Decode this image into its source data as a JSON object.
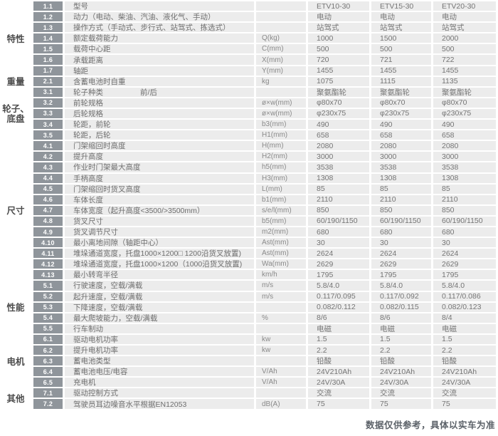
{
  "footnote": "数据仅供参考，具体以实车为准",
  "models": [
    "ETV10-30",
    "ETV15-30",
    "ETV20-30"
  ],
  "colors": {
    "row_band": "#ececec",
    "badge_bg": "#8f959b",
    "badge_text": "#ffffff",
    "category_text": "#4c4c4c",
    "desc_text": "#6e6e6e",
    "unit_text": "#8a8a8a",
    "value_text": "#757575",
    "footnote_text": "#5b6168"
  },
  "sections": [
    {
      "id": "texing",
      "category": [
        "特性"
      ],
      "rows": [
        {
          "no": "1.1",
          "label": "型号",
          "unit": "",
          "values": [
            "ETV10-30",
            "ETV15-30",
            "ETV20-30"
          ]
        },
        {
          "no": "1.2",
          "label": "动力（电动、柴油、汽油、液化气、手动）",
          "unit": "",
          "values": [
            "电动",
            "电动",
            "电动"
          ]
        },
        {
          "no": "1.3",
          "label": "操作方式（手动式、步行式、站驾式、拣选式）",
          "unit": "",
          "values": [
            "站驾式",
            "站驾式",
            "站驾式"
          ]
        },
        {
          "no": "1.4",
          "label": "额定载荷能力",
          "unit": "Q(kg)",
          "values": [
            "1000",
            "1500",
            "2000"
          ]
        },
        {
          "no": "1.5",
          "label": "载荷中心距",
          "unit": "C(mm)",
          "values": [
            "500",
            "500",
            "500"
          ]
        },
        {
          "no": "1.6",
          "label": "承载距离",
          "unit": "X(mm)",
          "values": [
            "720",
            "721",
            "722"
          ]
        },
        {
          "no": "1.7",
          "label": "轴距",
          "unit": "Y(mm)",
          "values": [
            "1455",
            "1455",
            "1455"
          ]
        }
      ]
    },
    {
      "id": "zhongliang",
      "category": [
        "重量"
      ],
      "rows": [
        {
          "no": "2.1",
          "label": "含蓄电池时自重",
          "unit": "kg",
          "values": [
            "1075",
            "1115",
            "1135"
          ]
        }
      ]
    },
    {
      "id": "lunzi-dipan",
      "category": [
        "轮子、",
        "底盘"
      ],
      "rows": [
        {
          "no": "3.1",
          "label": "轮子种类",
          "label2": "前/后",
          "unit": "",
          "values": [
            "聚氨酯轮",
            "聚氨酯轮",
            "聚氨酯轮"
          ]
        },
        {
          "no": "3.2",
          "label": "前轮规格",
          "unit": "ø×w(mm)",
          "values": [
            "φ80x70",
            "φ80x70",
            "φ80x70"
          ]
        },
        {
          "no": "3.3",
          "label": "后轮规格",
          "unit": "ø×w(mm)",
          "values": [
            "φ230x75",
            "φ230x75",
            "φ230x75"
          ]
        },
        {
          "no": "3.4",
          "label": "轮距，前轮",
          "unit": "b3(mm)",
          "values": [
            "490",
            "490",
            "490"
          ]
        },
        {
          "no": "3.5",
          "label": "轮距，后轮",
          "unit": "H1(mm)",
          "values": [
            "658",
            "658",
            "658"
          ]
        }
      ]
    },
    {
      "id": "chicun",
      "category": [
        "尺寸"
      ],
      "rows": [
        {
          "no": "4.1",
          "label": "门架缩回时高度",
          "unit": "H(mm)",
          "values": [
            "2080",
            "2080",
            "2080"
          ]
        },
        {
          "no": "4.2",
          "label": "提升高度",
          "unit": "H2(mm)",
          "values": [
            "3000",
            "3000",
            "3000"
          ]
        },
        {
          "no": "4.3",
          "label": "作业时门架最大高度",
          "unit": "h5(mm)",
          "values": [
            "3538",
            "3538",
            "3538"
          ]
        },
        {
          "no": "4.4",
          "label": "手柄高度",
          "unit": "H3(mm)",
          "values": [
            "1308",
            "1308",
            "1308"
          ]
        },
        {
          "no": "4.5",
          "label": "门架缩回时货叉高度",
          "unit": "L(mm)",
          "values": [
            "85",
            "85",
            "85"
          ]
        },
        {
          "no": "4.6",
          "label": "车体长度",
          "unit": "b1(mm)",
          "values": [
            "2110",
            "2110",
            "2110"
          ]
        },
        {
          "no": "4.7",
          "label": "车体宽度（起升高度<3500/>3500mm）",
          "unit": "s/e/l(mm)",
          "values": [
            "850",
            "850",
            "850"
          ]
        },
        {
          "no": "4.8",
          "label": "货叉尺寸",
          "unit": "b5(mm)",
          "values": [
            "60/190/1150",
            "60/190/1150",
            "60/190/1150"
          ]
        },
        {
          "no": "4.9",
          "label": "货叉调节尺寸",
          "unit": "m2(mm)",
          "values": [
            "680",
            "680",
            "680"
          ]
        },
        {
          "no": "4.10",
          "label": "最小离地间隙（轴距中心）",
          "unit": "Ast(mm)",
          "values": [
            "30",
            "30",
            "30"
          ]
        },
        {
          "no": "4.11",
          "label": "堆垛通道宽度，托盘1000×1200□ 1200沿货叉放置)",
          "unit": "Ast(mm)",
          "values": [
            "2624",
            "2624",
            "2624"
          ]
        },
        {
          "no": "4.12",
          "label": "堆垛通道宽度，托盘1000×1200（1000沿货叉放置)",
          "unit": "Wa(mm)",
          "values": [
            "2629",
            "2629",
            "2629"
          ]
        },
        {
          "no": "4.13",
          "label": "最小转弯半径",
          "unit": "km/h",
          "values": [
            "1795",
            "1795",
            "1795"
          ]
        }
      ]
    },
    {
      "id": "xingneng",
      "category": [
        "性能"
      ],
      "rows": [
        {
          "no": "5.1",
          "label": "行驶速度，空载/满载",
          "unit": "m/s",
          "values": [
            "5.8/4.0",
            "5.8/4.0",
            "5.8/4.0"
          ]
        },
        {
          "no": "5.2",
          "label": "起升速度，空载/满载",
          "unit": "m/s",
          "values": [
            "0.117/0.095",
            "0.117/0.092",
            "0.117/0.086"
          ]
        },
        {
          "no": "5.3",
          "label": "下降速度，空载/满载",
          "unit": "",
          "values": [
            "0.082/0.112",
            "0.082/0.115",
            "0.082/0.123"
          ]
        },
        {
          "no": "5.4",
          "label": "最大爬坡能力，空载/满载",
          "unit": "%",
          "values": [
            "8/6",
            "8/6",
            "8/4"
          ]
        },
        {
          "no": "5.5",
          "label": "行车制动",
          "unit": "",
          "values": [
            "电磁",
            "电磁",
            "电磁"
          ]
        }
      ]
    },
    {
      "id": "dianji",
      "category": [
        "电机"
      ],
      "rows": [
        {
          "no": "6.1",
          "label": "驱动电机功率",
          "unit": "kw",
          "values": [
            "1.5",
            "1.5",
            "1.5"
          ]
        },
        {
          "no": "6.2",
          "label": "提升电机功率",
          "unit": "kw",
          "values": [
            "2.2",
            "2.2",
            "2.2"
          ]
        },
        {
          "no": "6.3",
          "label": "蓄电池类型",
          "unit": "",
          "values": [
            "铅酸",
            "铅酸",
            "铅酸"
          ]
        },
        {
          "no": "6.4",
          "label": "蓄电池电压/电容",
          "unit": "V/Ah",
          "values": [
            "24V210Ah",
            "24V210Ah",
            "24V210Ah"
          ]
        },
        {
          "no": "6.5",
          "label": "充电机",
          "unit": "V/Ah",
          "values": [
            "24V/30A",
            "24V/30A",
            "24V/30A"
          ]
        }
      ]
    },
    {
      "id": "qita",
      "category": [
        "其他"
      ],
      "rows": [
        {
          "no": "7.1",
          "label": "驱动控制方式",
          "unit": "",
          "values": [
            "交流",
            "交流",
            "交流"
          ]
        },
        {
          "no": "7.2",
          "label": "驾驶员耳边噪音水平根据EN12053",
          "unit": "dB(A)",
          "values": [
            "75",
            "75",
            "75"
          ]
        }
      ]
    }
  ]
}
